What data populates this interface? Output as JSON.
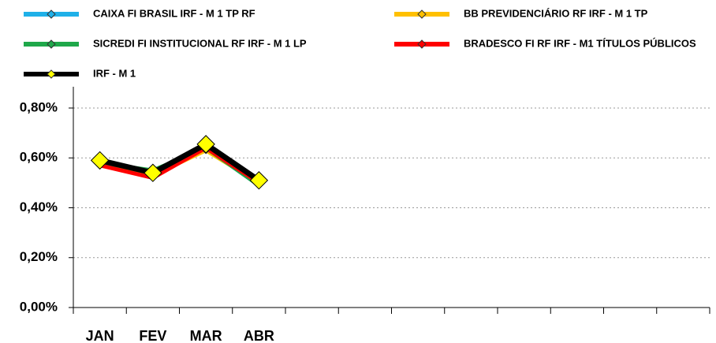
{
  "chart_data": {
    "type": "line",
    "categories": [
      "JAN",
      "FEV",
      "MAR",
      "ABR",
      null,
      null,
      null,
      null,
      null,
      null,
      null,
      null
    ],
    "series": [
      {
        "name": "CAIXA FI BRASIL IRF - M 1 TP RF",
        "color": "#1fb0e8",
        "marker_color": "#1fb0e8",
        "values": [
          0.58,
          0.54,
          0.64,
          0.49,
          null,
          null,
          null,
          null,
          null,
          null,
          null,
          null
        ]
      },
      {
        "name": "BB PREVIDENCIÁRIO RF IRF - M 1 TP",
        "color": "#ffc000",
        "marker_color": "#ffc000",
        "values": [
          0.58,
          0.53,
          0.63,
          0.5,
          null,
          null,
          null,
          null,
          null,
          null,
          null,
          null
        ]
      },
      {
        "name": "SICREDI FI INSTITUCIONAL RF IRF - M 1 LP",
        "color": "#1fa84a",
        "marker_color": "#1fa84a",
        "values": [
          0.58,
          0.55,
          0.64,
          0.49,
          null,
          null,
          null,
          null,
          null,
          null,
          null,
          null
        ]
      },
      {
        "name": "BRADESCO FI RF IRF - M1 TÍTULOS PÚBLICOS",
        "color": "#ff0000",
        "marker_color": "#ff0000",
        "values": [
          0.57,
          0.52,
          0.64,
          0.5,
          null,
          null,
          null,
          null,
          null,
          null,
          null,
          null
        ]
      },
      {
        "name": "IRF - M 1",
        "color": "#000000",
        "marker_color": "#ffff00",
        "values": [
          0.59,
          0.54,
          0.655,
          0.51,
          null,
          null,
          null,
          null,
          null,
          null,
          null,
          null
        ]
      }
    ],
    "ylim": [
      0,
      0.8
    ],
    "yticks": [
      {
        "value": 0,
        "label": "0,00%"
      },
      {
        "value": 0.2,
        "label": "0,20%"
      },
      {
        "value": 0.4,
        "label": "0,40%"
      },
      {
        "value": 0.6,
        "label": "0,60%"
      },
      {
        "value": 0.8,
        "label": "0,80%"
      }
    ],
    "grid": true
  }
}
